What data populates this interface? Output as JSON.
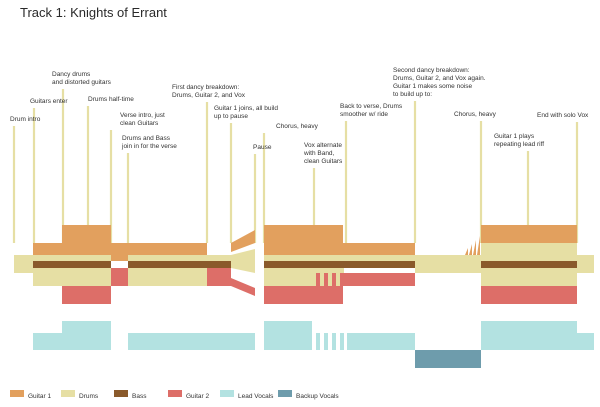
{
  "title": "Track 1: Knights of Errant",
  "colors": {
    "guitar1": "#E2A05E",
    "drums": "#E6DFA4",
    "bass": "#8A5A2B",
    "guitar2": "#DD6E68",
    "lead_vocals": "#B3E2E1",
    "backup_vocals": "#6E9CAC",
    "stem": "#E6DFA4"
  },
  "annotations": [
    {
      "id": "drum-intro",
      "lines": [
        "Drum intro"
      ]
    },
    {
      "id": "guitars-enter",
      "lines": [
        "Guitars enter"
      ]
    },
    {
      "id": "dancy-drums",
      "lines": [
        "Dancy drums",
        "and distorted guitars"
      ]
    },
    {
      "id": "drums-half-time",
      "lines": [
        "Drums half-time"
      ]
    },
    {
      "id": "verse-intro",
      "lines": [
        "Verse intro, just",
        "clean Guitars"
      ]
    },
    {
      "id": "drums-bass-join",
      "lines": [
        "Drums and Bass",
        "join in for the verse"
      ]
    },
    {
      "id": "first-dancy-breakdown",
      "lines": [
        "First dancy breakdown:",
        "Drums, Guitar 2, and Vox"
      ]
    },
    {
      "id": "guitar1-joins",
      "lines": [
        "Guitar 1 joins, all build",
        "up to pause"
      ]
    },
    {
      "id": "pause",
      "lines": [
        "Pause"
      ]
    },
    {
      "id": "chorus-heavy-1",
      "lines": [
        "Chorus, heavy"
      ]
    },
    {
      "id": "vox-alternate",
      "lines": [
        "Vox alternate",
        "with Band,",
        "clean Guitars"
      ]
    },
    {
      "id": "back-to-verse",
      "lines": [
        "Back to verse, Drums",
        "smoother w/ ride"
      ]
    },
    {
      "id": "second-dancy-breakdown",
      "lines": [
        "Second dancy breakdown:",
        "Drums, Guitar 2, and Vox again.",
        "Guitar 1 makes some noise",
        "to build up to:"
      ]
    },
    {
      "id": "chorus-heavy-2",
      "lines": [
        "Chorus, heavy"
      ]
    },
    {
      "id": "guitar1-repeating",
      "lines": [
        "Guitar 1 plays",
        "repeating lead riff"
      ]
    },
    {
      "id": "end-solo-vox",
      "lines": [
        "End with solo Vox"
      ]
    }
  ],
  "legend": [
    {
      "key": "guitar1",
      "label": "Guitar 1"
    },
    {
      "key": "drums",
      "label": "Drums"
    },
    {
      "key": "bass",
      "label": "Bass"
    },
    {
      "key": "guitar2",
      "label": "Guitar 2"
    },
    {
      "key": "lead_vocals",
      "label": "Lead Vocals"
    },
    {
      "key": "backup_vocals",
      "label": "Backup Vocals"
    }
  ]
}
